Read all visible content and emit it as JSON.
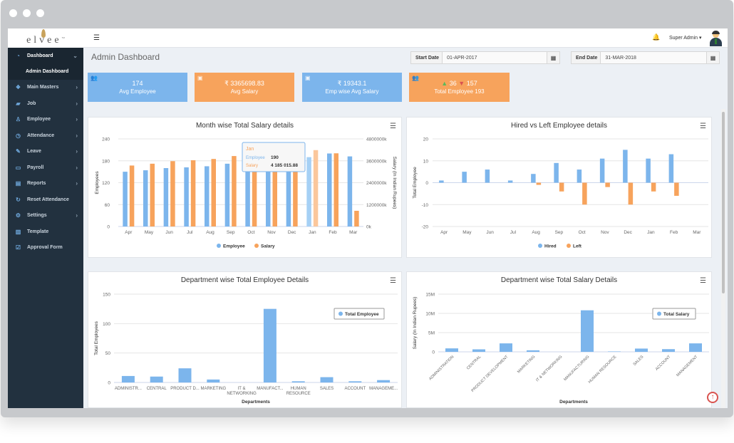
{
  "brand": {
    "logo": "elvee",
    "trademark": "TM"
  },
  "sidebar": {
    "items": [
      {
        "label": "Dashboard",
        "icon": "dashboard-icon",
        "glyph": "◔",
        "chevron": "⌄"
      },
      {
        "label": "Main Masters",
        "icon": "layers-icon",
        "glyph": "❖",
        "chevron": "›"
      },
      {
        "label": "Job",
        "icon": "graduation-cap-icon",
        "glyph": "▰",
        "chevron": "›"
      },
      {
        "label": "Employee",
        "icon": "user-icon",
        "glyph": "♙",
        "chevron": "›"
      },
      {
        "label": "Attendance",
        "icon": "clock-icon",
        "glyph": "◷",
        "chevron": "›"
      },
      {
        "label": "Leave",
        "icon": "edit-icon",
        "glyph": "✎",
        "chevron": "›"
      },
      {
        "label": "Payroll",
        "icon": "credit-card-icon",
        "glyph": "▭",
        "chevron": "›"
      },
      {
        "label": "Reports",
        "icon": "file-icon",
        "glyph": "▤",
        "chevron": "›"
      },
      {
        "label": "Reset Attendance",
        "icon": "refresh-icon",
        "glyph": "↻",
        "chevron": ""
      },
      {
        "label": "Settings",
        "icon": "gear-icon",
        "glyph": "⚙",
        "chevron": "›"
      },
      {
        "label": "Template",
        "icon": "columns-icon",
        "glyph": "▥",
        "chevron": ""
      },
      {
        "label": "Approval Form",
        "icon": "check-square-icon",
        "glyph": "☑",
        "chevron": ""
      }
    ],
    "subitem": "Admin Dashboard"
  },
  "header": {
    "menu_glyph": "☰",
    "bell_glyph": "🔔",
    "user": "Super Admin ▾"
  },
  "page": {
    "title": "Admin Dashboard",
    "start_date": {
      "label": "Start Date",
      "value": "01-APR-2017"
    },
    "end_date": {
      "label": "End Date",
      "value": "31-MAR-2018"
    },
    "calendar_glyph": "▦"
  },
  "stats": [
    {
      "value": "174",
      "label": "Avg Employee",
      "icon": "users-icon",
      "glyph": "👥"
    },
    {
      "value": "₹ 3365698.83",
      "label": "Avg Salary",
      "icon": "money-icon",
      "glyph": "▣"
    },
    {
      "value": "₹ 19343.1",
      "label": "Emp wise Avg Salary",
      "icon": "money-icon",
      "glyph": "▣"
    },
    {
      "up": "36",
      "down": "157",
      "label": "Total Employee 193",
      "icon": "users-icon",
      "glyph": "👥"
    }
  ],
  "colors": {
    "blue": "#7cb5ec",
    "orange": "#f7a35c",
    "up": "#5cb85c",
    "down": "#d9534f",
    "sidebar": "#22313f"
  },
  "chart_data": [
    {
      "type": "bar",
      "title": "Month wise Total Salary details",
      "categories": [
        "Apr",
        "May",
        "Jun",
        "Jul",
        "Aug",
        "Sep",
        "Oct",
        "Nov",
        "Dec",
        "Jan",
        "Feb",
        "Mar"
      ],
      "ylabel": "Employees",
      "y2label": "Salary (In Indian Rupees)",
      "ylim": [
        0,
        240
      ],
      "yticks": [
        "0",
        "60",
        "120",
        "180",
        "240"
      ],
      "y2lim": [
        0,
        4800000
      ],
      "y2ticks": [
        "0k",
        "1200000k",
        "2400000k",
        "3600000k",
        "4800000k"
      ],
      "series": [
        {
          "name": "Employee",
          "axis": "left",
          "values": [
            150,
            154,
            160,
            162,
            165,
            172,
            176,
            177,
            188,
            190,
            200,
            192
          ]
        },
        {
          "name": "Salary",
          "axis": "right",
          "values": [
            3340000,
            3440000,
            3580000,
            3630000,
            3700000,
            3860000,
            3990000,
            4020000,
            4060000,
            4185015.88,
            4010000,
            860000
          ]
        }
      ],
      "legend": "bottom",
      "tooltip": {
        "category": "Jan",
        "employee_label": "Employee",
        "employee_value": "190",
        "salary_label": "Salary",
        "salary_value": "4 185 015.88"
      }
    },
    {
      "type": "bar",
      "title": "Hired vs Left Employee details",
      "categories": [
        "Apr",
        "May",
        "Jun",
        "Jul",
        "Aug",
        "Sep",
        "Oct",
        "Nov",
        "Dec",
        "Jan",
        "Feb",
        "Mar"
      ],
      "ylabel": "Total Employee",
      "ylim": [
        -20,
        20
      ],
      "yticks": [
        "20",
        "10",
        "0",
        "-10",
        "-20"
      ],
      "series": [
        {
          "name": "Hired",
          "values": [
            1,
            5,
            6,
            1,
            4,
            9,
            6,
            11,
            15,
            11,
            13,
            0
          ]
        },
        {
          "name": "Left",
          "values": [
            0,
            0,
            0,
            0,
            -1,
            -4,
            -10,
            -2,
            -10,
            -4,
            -6,
            0
          ]
        }
      ],
      "legend": "bottom"
    },
    {
      "type": "bar",
      "title": "Department wise Total Employee Details",
      "categories": [
        "ADMINISTR...",
        "CENTRAL",
        "PRODUCT D...",
        "MARKETING",
        "IT &\nNETWORKING",
        "MANUFACT...",
        "HUMAN\nRESOURCE",
        "SALES",
        "ACCOUNT",
        "MANAGEME..."
      ],
      "xlabel": "Departments",
      "ylabel": "Total Employees",
      "ylim": [
        0,
        150
      ],
      "yticks": [
        "0",
        "50",
        "100",
        "150"
      ],
      "series": [
        {
          "name": "Total Employee",
          "values": [
            11,
            10,
            24,
            5,
            0,
            125,
            2,
            9,
            2,
            4
          ]
        }
      ],
      "legend": "top-right"
    },
    {
      "type": "bar",
      "title": "Department wise Total Salary Details",
      "categories": [
        "ADMINISTRATION",
        "CENTRAL",
        "PRODUCT DEVELOPMENT",
        "MARKETING",
        "IT & NETWORKING",
        "MANUFACTURING",
        "HUMAN RESOURCE",
        "SALES",
        "ACCOUNT",
        "MANAGEMENT"
      ],
      "xlabel": "Departments",
      "ylabel": "Salary (In Indian Rupees)",
      "ylim": [
        0,
        15000000
      ],
      "yticks": [
        "0",
        "5M",
        "10M",
        "15M"
      ],
      "series": [
        {
          "name": "Total Salary",
          "values": [
            900000,
            650000,
            2200000,
            400000,
            0,
            10800000,
            100000,
            850000,
            700000,
            2200000
          ]
        }
      ],
      "legend": "top-right"
    }
  ],
  "misc": {
    "to_top_glyph": "↑",
    "burger_glyph": "☰"
  }
}
